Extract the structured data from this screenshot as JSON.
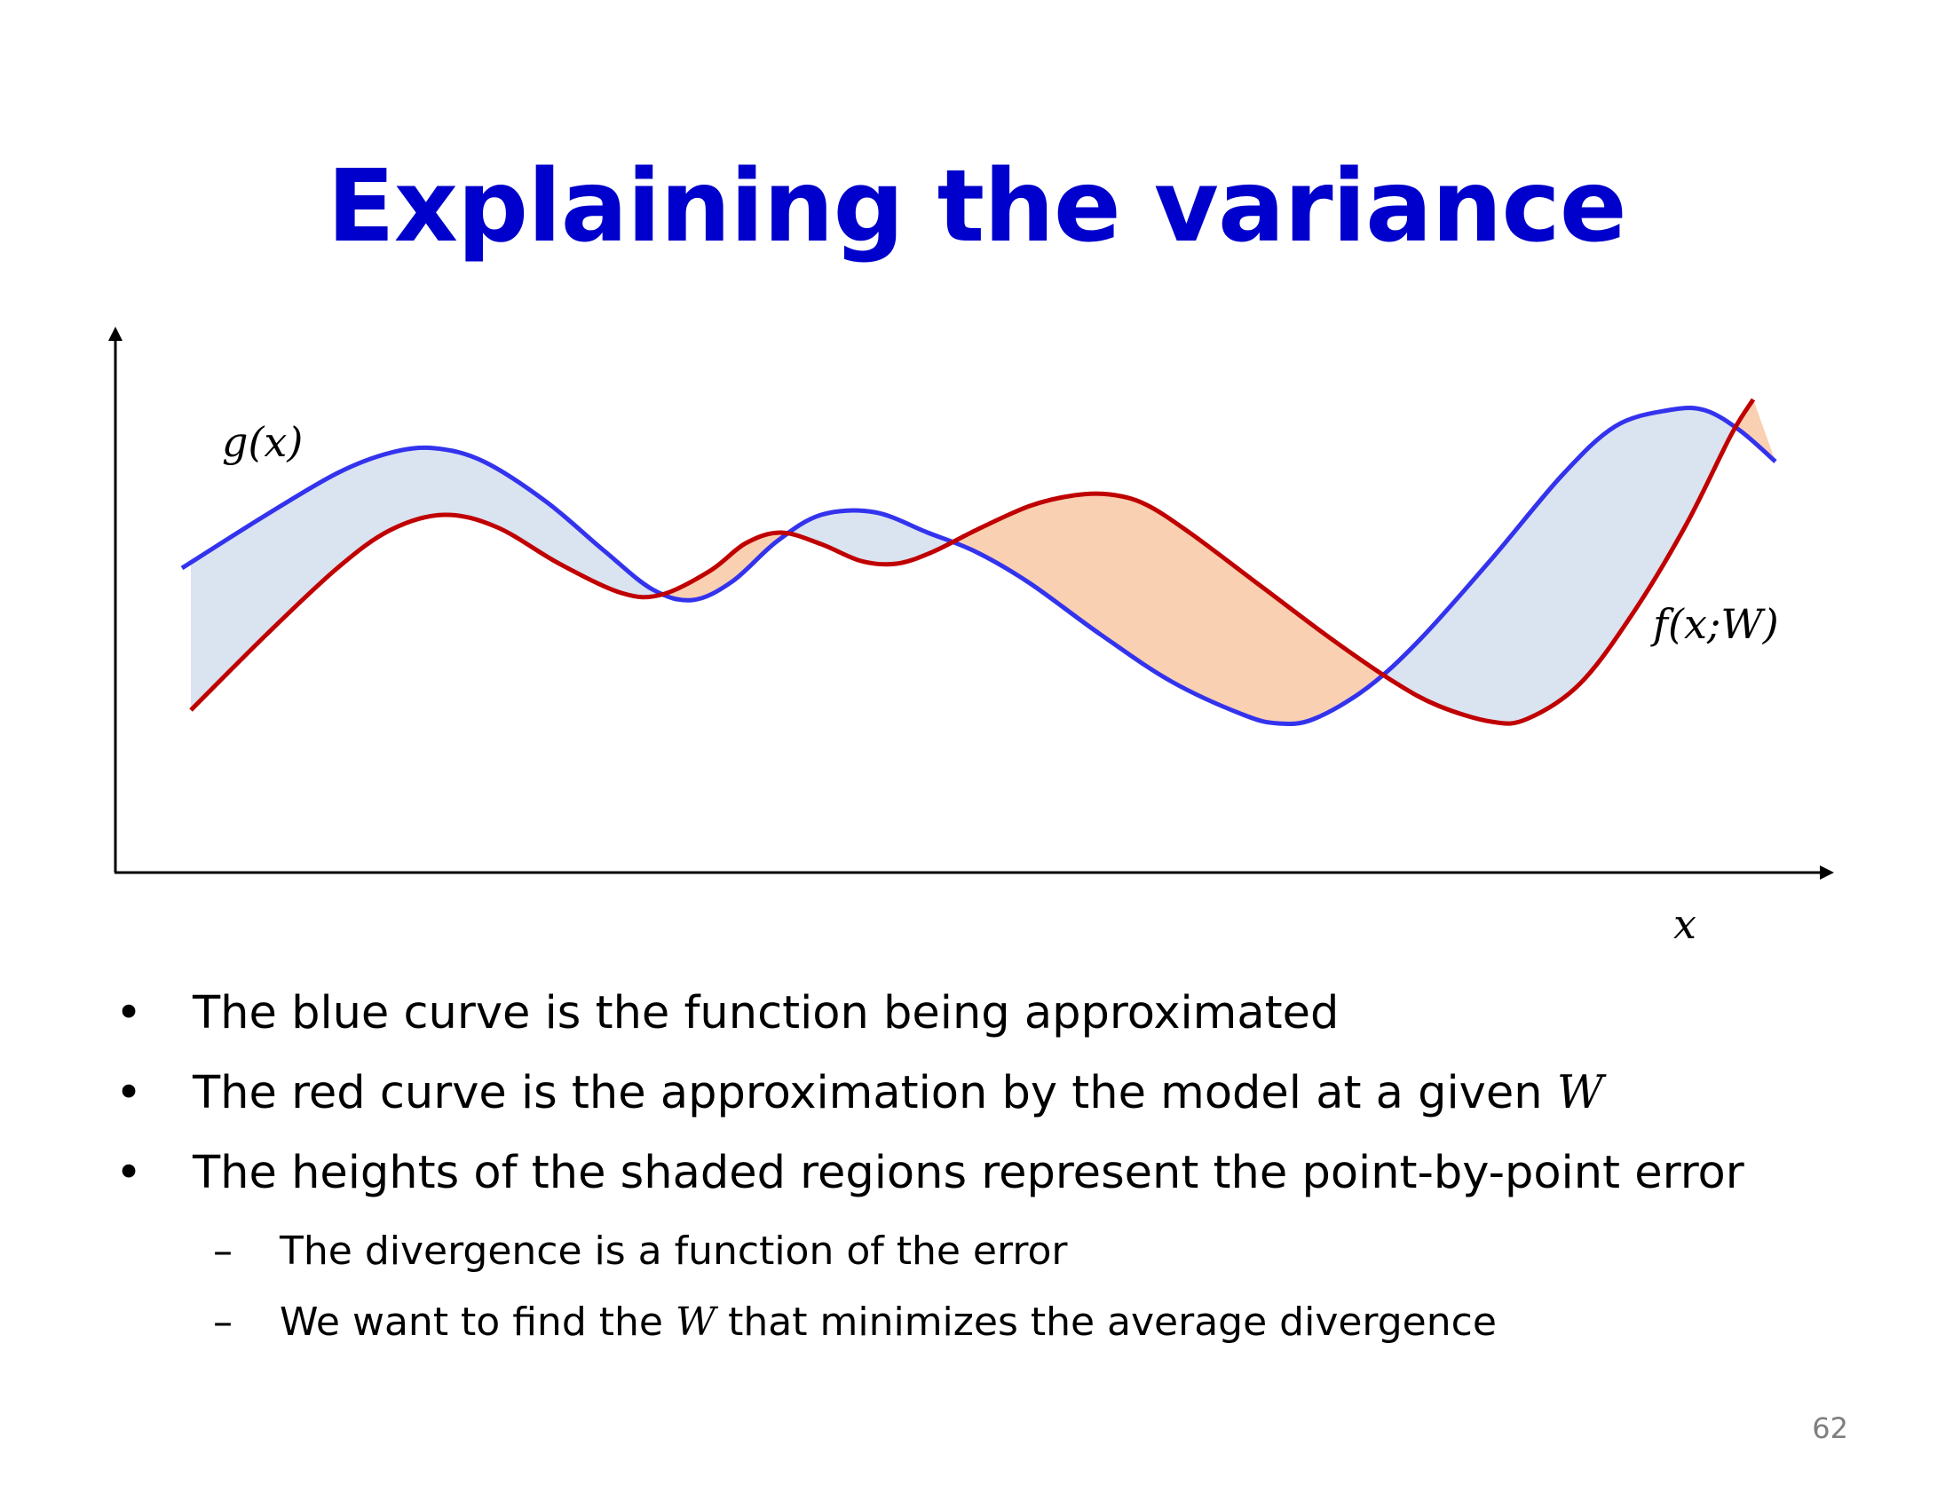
{
  "slide": {
    "title": "Explaining the variance",
    "page_number": "62"
  },
  "diagram": {
    "label_g": "g(x)",
    "label_f": "f(x;W)",
    "label_x": "x",
    "colors": {
      "target_curve": "#3333ee",
      "model_curve": "#c00000",
      "fill_target_above": "#dae3f0",
      "fill_model_above": "#f9d0b2",
      "axis": "#000000"
    }
  },
  "bullets": [
    {
      "level": 1,
      "marker": "•",
      "parts": [
        "The blue curve is the function being approximated"
      ]
    },
    {
      "level": 1,
      "marker": "•",
      "parts": [
        "The red curve is the approximation by the model at a given ",
        "W",
        ""
      ]
    },
    {
      "level": 1,
      "marker": "•",
      "parts": [
        "The heights of the shaded regions represent the point-by-point error"
      ]
    },
    {
      "level": 2,
      "marker": "–",
      "parts": [
        "The divergence is a function of the error"
      ]
    },
    {
      "level": 2,
      "marker": "–",
      "parts": [
        "We want to find the ",
        "W",
        " that minimizes the average divergence"
      ]
    }
  ]
}
